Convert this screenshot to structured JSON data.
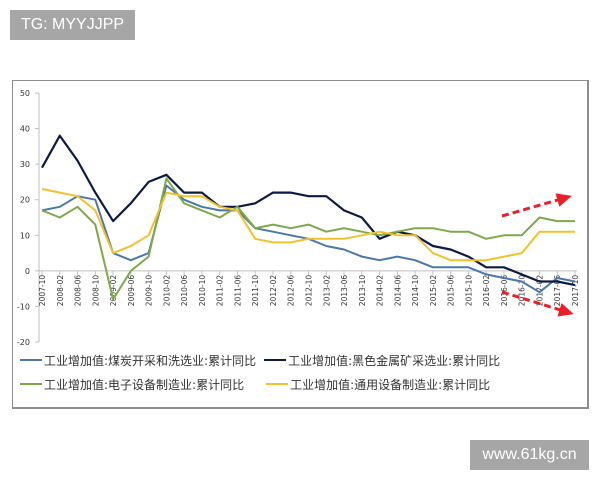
{
  "watermarks": {
    "top_left": "TG: MYYJJPP",
    "bottom_right": "www.61kg.cn"
  },
  "chart_data": {
    "type": "line",
    "title": "",
    "xlabel": "",
    "ylabel": "",
    "ylim": [
      -20,
      50
    ],
    "yticks": [
      50,
      40,
      30,
      20,
      10,
      0,
      -10,
      -20
    ],
    "grid": false,
    "legend_position": "bottom",
    "categories": [
      "2007-10",
      "2008-02",
      "2008-06",
      "2008-10",
      "2009-02",
      "2009-06",
      "2009-10",
      "2010-02",
      "2010-06",
      "2010-10",
      "2011-02",
      "2011-06",
      "2011-10",
      "2012-02",
      "2012-06",
      "2012-10",
      "2013-02",
      "2013-06",
      "2013-10",
      "2014-02",
      "2014-06",
      "2014-10",
      "2015-02",
      "2015-06",
      "2015-10",
      "2016-02",
      "2016-06",
      "2016-10",
      "2017-02",
      "2017-06",
      "2017-10"
    ],
    "series": [
      {
        "name": "工业增加值:煤炭开采和洗选业:累计同比",
        "color": "#4a78a8",
        "values": [
          17,
          18,
          21,
          20,
          5,
          3,
          5,
          24,
          20,
          18,
          17,
          17,
          12,
          11,
          10,
          9,
          7,
          6,
          4,
          3,
          4,
          3,
          1,
          1,
          1,
          -1,
          -2,
          -3,
          -6,
          -2,
          -3
        ]
      },
      {
        "name": "工业增加值:黑色金属矿采选业:累计同比",
        "color": "#0f1a44",
        "values": [
          29,
          38,
          31,
          22,
          14,
          19,
          25,
          27,
          22,
          22,
          18,
          18,
          19,
          22,
          22,
          21,
          21,
          17,
          15,
          9,
          11,
          10,
          7,
          6,
          4,
          1,
          1,
          -1,
          -3,
          -3,
          -4
        ]
      },
      {
        "name": "工业增加值:电子设备制造业:累计同比",
        "color": "#7fa84a",
        "values": [
          17,
          15,
          18,
          13,
          -8,
          0,
          4,
          26,
          19,
          17,
          15,
          18,
          12,
          13,
          12,
          13,
          11,
          12,
          11,
          10,
          11,
          12,
          12,
          11,
          11,
          9,
          10,
          10,
          15,
          14,
          14
        ]
      },
      {
        "name": "工业增加值:通用设备制造业:累计同比",
        "color": "#f2c22e",
        "values": [
          23,
          22,
          21,
          17,
          5,
          7,
          10,
          22,
          21,
          21,
          18,
          17,
          9,
          8,
          8,
          9,
          9,
          9,
          10,
          11,
          10,
          10,
          5,
          3,
          3,
          3,
          4,
          5,
          11,
          11,
          11
        ]
      }
    ],
    "annotations": [
      {
        "type": "arrow",
        "style": "red-dashed",
        "direction": "up-right",
        "near": "2016-06 to 2017-10, upper"
      },
      {
        "type": "arrow",
        "style": "red-dashed",
        "direction": "down-right",
        "near": "2016-06 to 2017-10, lower"
      }
    ]
  },
  "legend": {
    "items": [
      {
        "label": "工业增加值:煤炭开采和洗选业:累计同比",
        "color": "#4a78a8"
      },
      {
        "label": "工业增加值:黑色金属矿采选业:累计同比",
        "color": "#0f1a44"
      },
      {
        "label": "工业增加值:电子设备制造业:累计同比",
        "color": "#7fa84a"
      },
      {
        "label": "工业增加值:通用设备制造业:累计同比",
        "color": "#f2c22e"
      }
    ]
  }
}
